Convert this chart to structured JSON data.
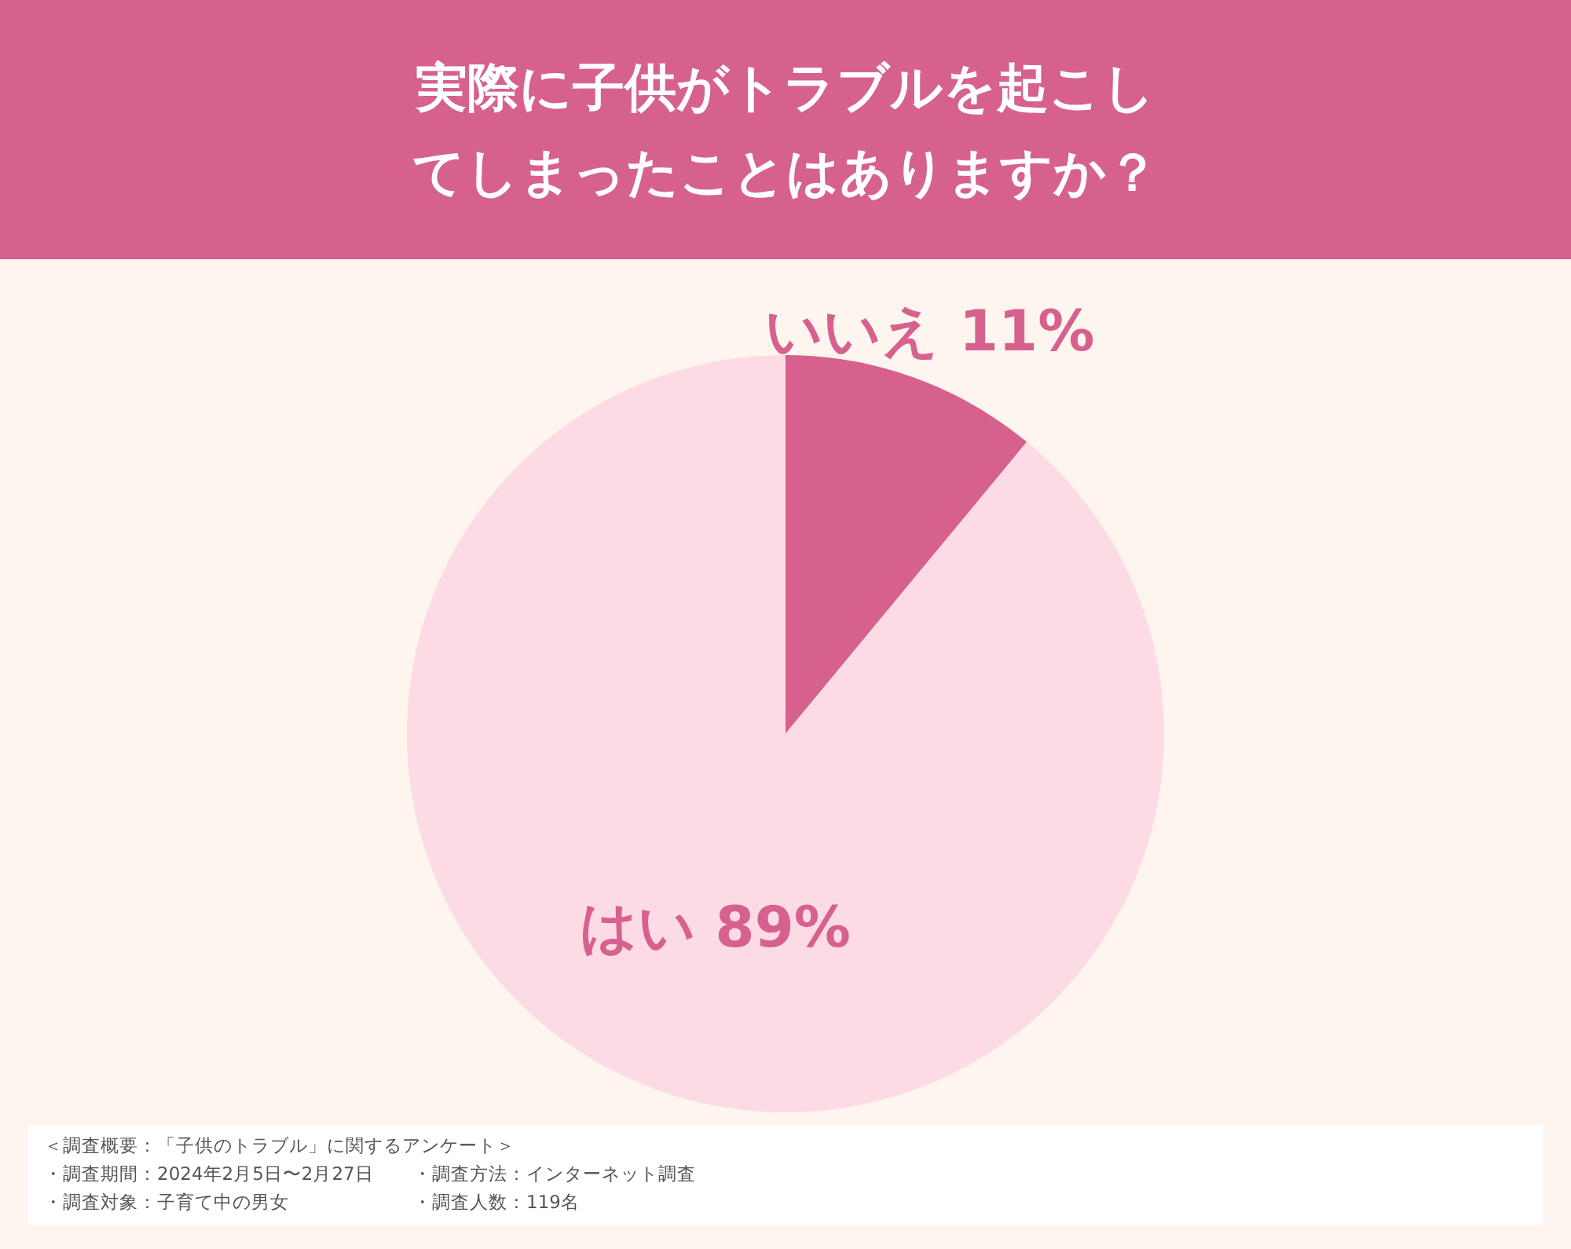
{
  "chart_data": {
    "type": "pie",
    "title": "実際に子供がトラブルを起こしてしまったことはありますか？",
    "categories": [
      "いいえ",
      "はい"
    ],
    "values": [
      11,
      89
    ],
    "value_labels": [
      "11%",
      "89%"
    ],
    "colors": [
      "#d6618f",
      "#fddbe5"
    ],
    "annotations": [
      "＜調査概要：「子供のトラブル」に関するアンケート＞",
      "・調査期間：2024年2月5日〜2月27日",
      "・調査方法：インターネット調査",
      "・調査対象：子育て中の男女",
      "・調査人数：119名"
    ]
  }
}
